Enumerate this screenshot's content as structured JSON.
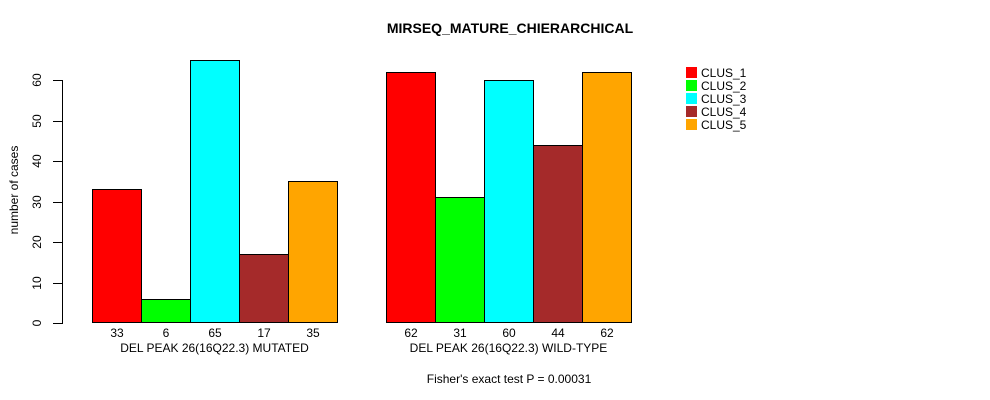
{
  "chart_data": {
    "type": "bar",
    "title": "MIRSEQ_MATURE_CHIERARCHICAL",
    "ylabel": "number of cases",
    "xlabel": "",
    "ylim": [
      0,
      65
    ],
    "yticks": [
      0,
      10,
      20,
      30,
      40,
      50,
      60
    ],
    "grid": false,
    "legend_position": "right",
    "categories": [
      "DEL PEAK 26(16Q22.3) MUTATED",
      "DEL PEAK 26(16Q22.3) WILD-TYPE"
    ],
    "series": [
      {
        "name": "CLUS_1",
        "color": "#FF0000",
        "values": [
          33,
          62
        ]
      },
      {
        "name": "CLUS_2",
        "color": "#00FF00",
        "values": [
          6,
          31
        ]
      },
      {
        "name": "CLUS_3",
        "color": "#00FFFF",
        "values": [
          65,
          60
        ]
      },
      {
        "name": "CLUS_4",
        "color": "#A52A2A",
        "values": [
          17,
          44
        ]
      },
      {
        "name": "CLUS_5",
        "color": "#FFA500",
        "values": [
          35,
          62
        ]
      }
    ],
    "bar_value_labels": [
      [
        33,
        6,
        65,
        17,
        35
      ],
      [
        62,
        31,
        60,
        44,
        62
      ]
    ],
    "annotation": "Fisher's exact test P = 0.00031",
    "axis_color": "#000000",
    "text_color": "#000000",
    "background_color": "#FFFFFF"
  }
}
